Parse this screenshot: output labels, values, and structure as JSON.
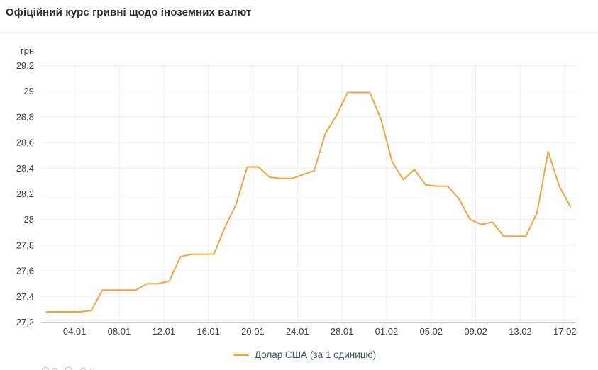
{
  "page": {
    "title": "Офіційний курс гривні щодо іноземних валют"
  },
  "legend": {
    "usd_label": "Долар США (за 1 одиницю)"
  },
  "chart_data": {
    "type": "line",
    "title": "Офіційний курс гривні щодо іноземних валют",
    "unit_label": "грн",
    "ylabel": "грн",
    "xlabel": "",
    "ylim": [
      27.2,
      29.2
    ],
    "grid": true,
    "legend_position": "bottom",
    "decimal_separator": ",",
    "y_ticks": {
      "values": [
        29.2,
        29.0,
        28.8,
        28.6,
        28.4,
        28.2,
        28.0,
        27.8,
        27.6,
        27.4,
        27.2
      ],
      "labels": [
        "29,2",
        "29",
        "28,8",
        "28,6",
        "28,4",
        "28,2",
        "28",
        "27,8",
        "27,6",
        "27,4",
        "27,2"
      ]
    },
    "x_tick_labels": [
      "04.01",
      "08.01",
      "12.01",
      "16.01",
      "20.01",
      "24.01",
      "28.01",
      "01.02",
      "05.02",
      "09.02",
      "13.02",
      "17.02"
    ],
    "series": [
      {
        "name": "Долар США (за 1 одиницю)",
        "color": "#f5a63a",
        "x": [
          "01.01",
          "02.01",
          "03.01",
          "04.01",
          "05.01",
          "06.01",
          "07.01",
          "08.01",
          "09.01",
          "10.01",
          "11.01",
          "12.01",
          "13.01",
          "14.01",
          "15.01",
          "16.01",
          "17.01",
          "18.01",
          "19.01",
          "20.01",
          "21.01",
          "22.01",
          "23.01",
          "24.01",
          "25.01",
          "26.01",
          "27.01",
          "28.01",
          "29.01",
          "30.01",
          "31.01",
          "01.02",
          "02.02",
          "03.02",
          "04.02",
          "05.02",
          "06.02",
          "07.02",
          "08.02",
          "09.02",
          "10.02",
          "11.02",
          "12.02",
          "13.02",
          "14.02",
          "15.02",
          "16.02",
          "17.02"
        ],
        "values": [
          27.28,
          27.28,
          27.28,
          27.28,
          27.29,
          27.45,
          27.45,
          27.45,
          27.45,
          27.5,
          27.5,
          27.52,
          27.71,
          27.73,
          27.73,
          27.73,
          27.94,
          28.12,
          28.41,
          28.41,
          28.33,
          28.32,
          28.32,
          28.35,
          28.38,
          28.67,
          28.81,
          28.99,
          28.99,
          28.99,
          28.78,
          28.45,
          28.31,
          28.39,
          28.27,
          28.26,
          28.26,
          28.16,
          28.0,
          27.96,
          27.98,
          27.87,
          27.87,
          27.87,
          28.05,
          28.53,
          28.26,
          28.1
        ]
      }
    ]
  }
}
